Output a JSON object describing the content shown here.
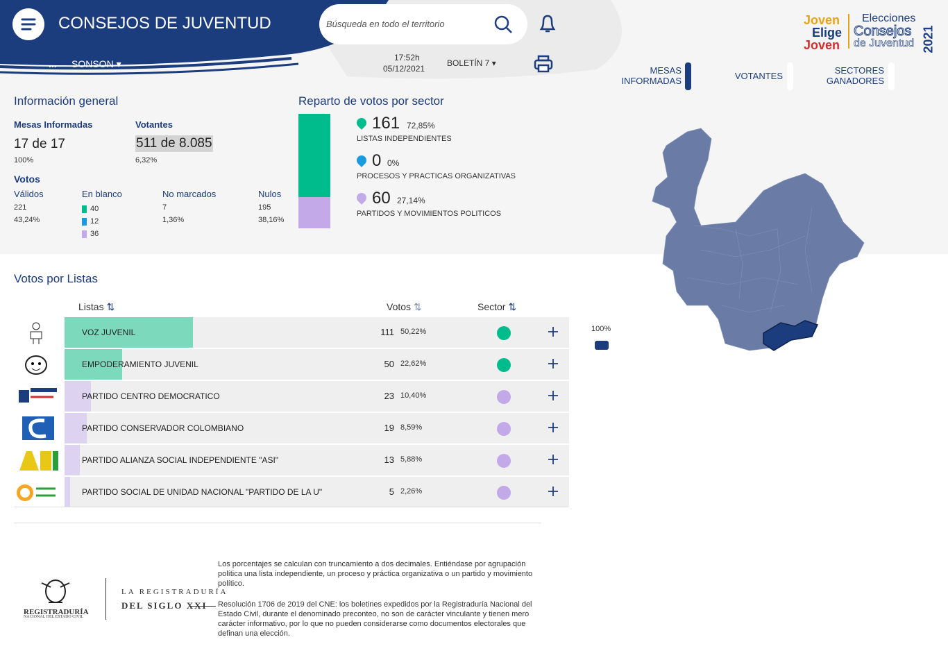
{
  "header": {
    "title": "CONSEJOS DE JUVENTUD",
    "search_placeholder": "Búsqueda en todo el territorio",
    "location_prefix": "...",
    "location": "SONSON",
    "time": "17:52h",
    "date": "05/12/2021",
    "bulletin": "BOLETÍN 7"
  },
  "logo": {
    "line1": "Joven",
    "line2": "Elige",
    "line3": "Joven",
    "elecciones": "Elecciones",
    "consejos": "Consejos",
    "de_juventud": "de Juventud",
    "year": "2021"
  },
  "tabs": [
    "MESAS INFORMADAS",
    "VOTANTES",
    "SECTORES GANADORES"
  ],
  "general": {
    "title": "Información general",
    "mesas_label": "Mesas Informadas",
    "mesas_value": "17 de 17",
    "mesas_pct": "100%",
    "votantes_label": "Votantes",
    "votantes_value": "511 de 8.085",
    "votantes_pct": "6,32%",
    "votos_label": "Votos",
    "validos_label": "Válidos",
    "validos": "221",
    "validos_pct": "43,24%",
    "blanco_label": "En blanco",
    "blanco": [
      "40",
      "12",
      "36"
    ],
    "no_marcados_label": "No marcados",
    "no_marcados": "7",
    "no_marcados_pct": "1,36%",
    "nulos_label": "Nulos",
    "nulos": "195",
    "nulos_pct": "38,16%"
  },
  "sectors": {
    "title": "Reparto de votos por sector",
    "items": [
      {
        "votes": "161",
        "percent": 72.85,
        "percent_label": "72,85%",
        "name": "LISTAS INDEPENDIENTES",
        "color": "#00bc8c"
      },
      {
        "votes": "0",
        "percent": 0,
        "percent_label": "0%",
        "name": "PROCESOS Y PRACTICAS ORGANIZATIVAS",
        "color": "#1a9be0"
      },
      {
        "votes": "60",
        "percent": 27.14,
        "percent_label": "27,14%",
        "name": "PARTIDOS Y MOVIMIENTOS POLITICOS",
        "color": "#c3a9e8"
      }
    ]
  },
  "lists": {
    "title": "Votos por Listas",
    "columns": [
      "Listas",
      "Votos",
      "Sector"
    ],
    "rows": [
      {
        "name": "VOZ JUVENIL",
        "votes": "111",
        "percent": 50.22,
        "percent_label": "50,22%",
        "bar_color": "#7dd9bc",
        "sector_color": "#00bc8c"
      },
      {
        "name": "EMPODERAMIENTO JUVENIL",
        "votes": "50",
        "percent": 22.62,
        "percent_label": "22,62%",
        "bar_color": "#7dd9bc",
        "sector_color": "#00bc8c"
      },
      {
        "name": "PARTIDO CENTRO DEMOCRATICO",
        "votes": "23",
        "percent": 10.4,
        "percent_label": "10,40%",
        "bar_color": "#ddd3f1",
        "sector_color": "#c3a9e8"
      },
      {
        "name": "PARTIDO CONSERVADOR COLOMBIANO",
        "votes": "19",
        "percent": 8.59,
        "percent_label": "8,59%",
        "bar_color": "#ddd3f1",
        "sector_color": "#c3a9e8"
      },
      {
        "name": "PARTIDO ALIANZA SOCIAL INDEPENDIENTE \"ASI\"",
        "votes": "13",
        "percent": 5.88,
        "percent_label": "5,88%",
        "bar_color": "#ddd3f1",
        "sector_color": "#c3a9e8"
      },
      {
        "name": "PARTIDO SOCIAL DE UNIDAD NACIONAL \"PARTIDO DE LA U\"",
        "votes": "5",
        "percent": 2.26,
        "percent_label": "2,26%",
        "bar_color": "#ddd3f1",
        "sector_color": "#c3a9e8"
      }
    ]
  },
  "map": {
    "legend": "100%"
  },
  "footer": {
    "reg": "REGISTRADURÍA",
    "reg_sub": "NACIONAL DEL ESTADO CIVIL",
    "brand1": "LA REGISTRADURÍA",
    "brand2": "DEL SIGLO XXI",
    "note1": "Los porcentajes se calculan con truncamiento a dos decimales. Entiéndase por agrupación política una lista independiente, un proceso y práctica organizativa o un partido y movimiento político.",
    "note2": "Resolución 1706 de 2019 del CNE: los boletines expedidos por la Registraduría Nacional del Estado Civil, durante el denominado preconteo, no son de carácter vinculante y tienen mero carácter informativo, por lo que no pueden considerarse como documentos electorales que definan una elección."
  }
}
